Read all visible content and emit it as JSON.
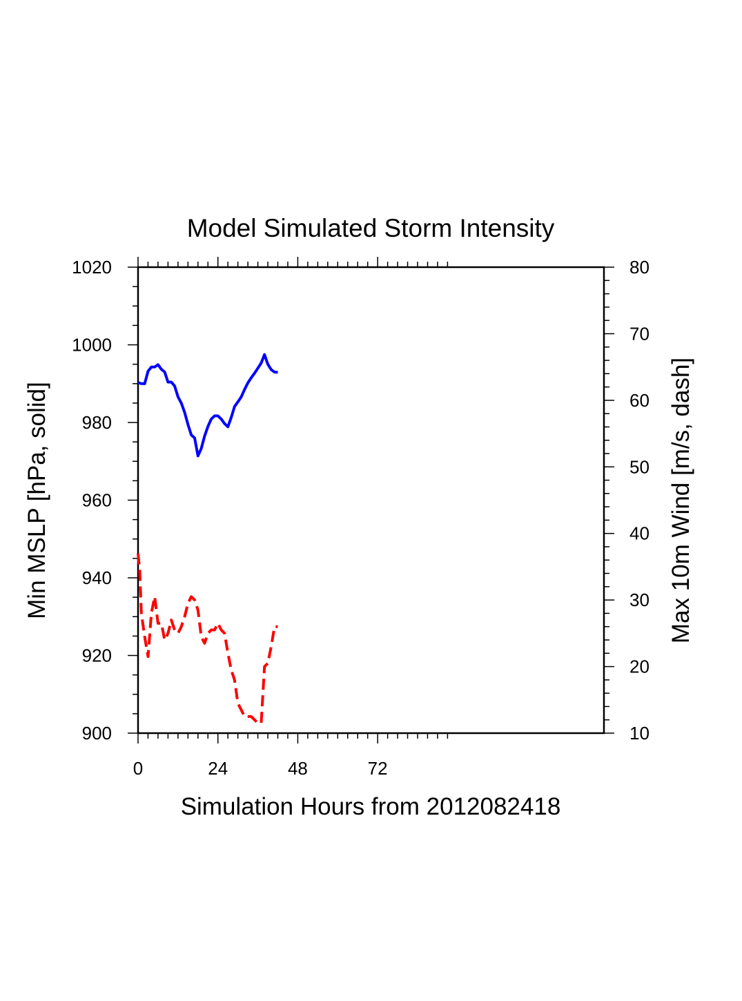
{
  "chart_data": {
    "type": "line",
    "title": "Model Simulated Storm Intensity",
    "xlabel": "Simulation Hours from 2012082418",
    "ylabel_left": "Min MSLP  [hPa, solid]",
    "ylabel_right": "Max 10m Wind  [m/s, dash]",
    "xlim": [
      0,
      140
    ],
    "xticks": [
      0,
      24,
      48,
      72
    ],
    "xtick_labels": [
      "0",
      "24",
      "48",
      "72"
    ],
    "ylim_left": [
      900,
      1020
    ],
    "yticks_left": [
      900,
      920,
      940,
      960,
      980,
      1000,
      1020
    ],
    "ytick_labels_left": [
      "900",
      "920",
      "940",
      "960",
      "980",
      "1000",
      "1020"
    ],
    "ylim_right": [
      10,
      80
    ],
    "yticks_right": [
      10,
      20,
      30,
      40,
      50,
      60,
      70,
      80
    ],
    "ytick_labels_right": [
      "10",
      "20",
      "30",
      "40",
      "50",
      "60",
      "70",
      "80"
    ],
    "series": [
      {
        "name": "Min MSLP",
        "axis": "left",
        "color": "#0000ff",
        "style": "solid",
        "x": [
          0,
          1,
          2,
          3,
          4,
          5,
          6,
          7,
          8,
          9,
          10,
          11,
          12,
          13,
          14,
          15,
          16,
          17,
          18,
          19,
          20,
          21,
          22,
          23,
          24,
          25,
          26,
          27,
          28,
          29,
          30,
          31,
          32,
          33,
          34,
          35,
          36,
          37,
          38,
          39,
          40,
          41,
          42
        ],
        "values": [
          990.3,
          990.0,
          990.0,
          993.2,
          994.3,
          994.3,
          994.9,
          993.7,
          993.0,
          990.4,
          990.4,
          989.4,
          986.6,
          985.0,
          982.6,
          979.5,
          976.8,
          976.0,
          971.4,
          973.3,
          976.5,
          979.0,
          980.9,
          981.7,
          981.7,
          980.9,
          979.7,
          978.9,
          981.3,
          984.1,
          985.3,
          986.6,
          988.5,
          990.2,
          991.5,
          992.7,
          994.0,
          995.3,
          997.5,
          995.0,
          993.6,
          993.0,
          992.9
        ]
      },
      {
        "name": "Max 10m Wind",
        "axis": "right",
        "color": "#ff0000",
        "style": "dash",
        "x": [
          0,
          0.5,
          1,
          2,
          3,
          4,
          5,
          6,
          7,
          8,
          9,
          10,
          11,
          12,
          13,
          14,
          15,
          16,
          17,
          18,
          19,
          20,
          21,
          22,
          23,
          24,
          25,
          26,
          27,
          28,
          29,
          30,
          31,
          32,
          33,
          34,
          35,
          36,
          37,
          38,
          39,
          40,
          41,
          42
        ],
        "values": [
          37.0,
          34.5,
          28.0,
          24.5,
          21.5,
          28.0,
          30.5,
          26.5,
          26.5,
          24.0,
          25.0,
          27.0,
          25.5,
          25.0,
          26.0,
          27.5,
          29.5,
          30.5,
          30.0,
          28.5,
          24.5,
          23.5,
          25.0,
          25.5,
          25.5,
          26.5,
          25.5,
          25.0,
          22.0,
          19.5,
          18.0,
          14.5,
          13.5,
          12.5,
          12.5,
          12.5,
          12.0,
          11.5,
          11.5,
          20.0,
          20.5,
          23.0,
          26.0,
          26.0
        ]
      }
    ]
  }
}
